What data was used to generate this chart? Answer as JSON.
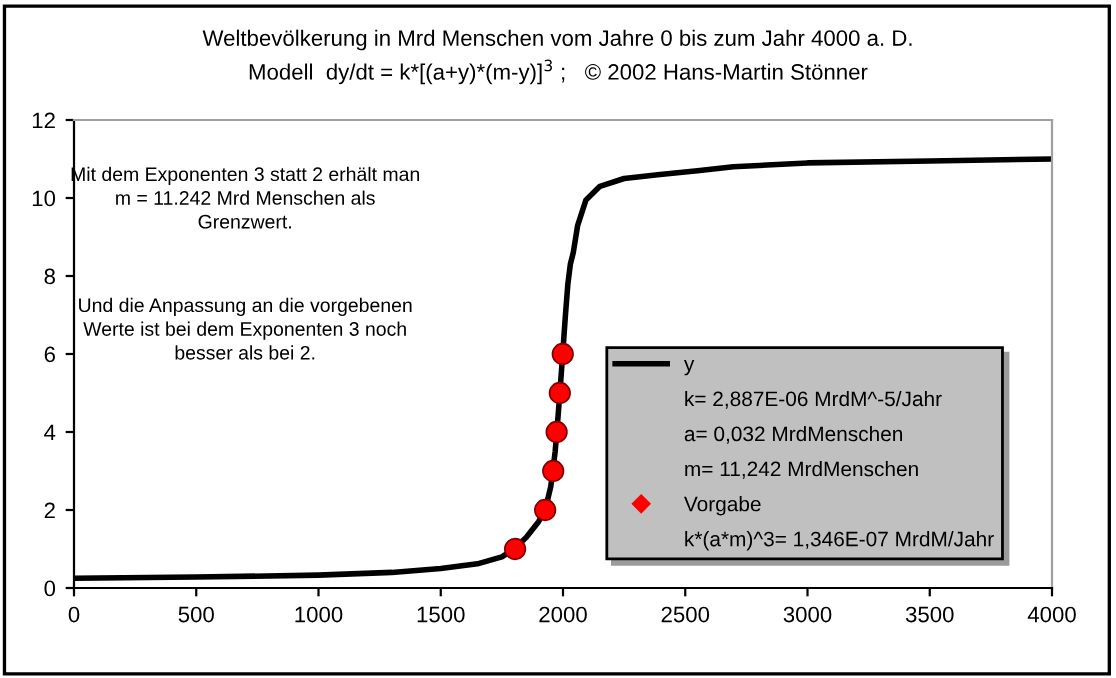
{
  "chart_data": {
    "type": "line",
    "title": "Weltbevölkerung in Mrd Menschen vom Jahre 0 bis zum Jahr 4000 a. D.",
    "subtitle": "Modell  dy/dt = k*[(a+y)*(m-y)]$^{3}$ ;   © 2002 Hans-Martin Stönner",
    "series": [
      {
        "name": "y",
        "color": "#000000",
        "marker": "none",
        "line_style": "solid",
        "x": [
          0,
          500,
          1000,
          1300,
          1500,
          1650,
          1750,
          1800,
          1850,
          1900,
          1927,
          1950,
          1968,
          1981,
          1993,
          2010,
          2020,
          2030,
          2042,
          2060,
          2094,
          2151,
          2250,
          2397,
          2550,
          2697,
          3000,
          3500,
          4000
        ],
        "values": [
          0.25,
          0.28,
          0.33,
          0.4,
          0.5,
          0.62,
          0.8,
          1.0,
          1.3,
          1.7,
          2.0,
          2.6,
          3.5,
          4.5,
          5.5,
          7.0,
          7.8,
          8.3,
          8.6,
          9.3,
          9.95,
          10.3,
          10.5,
          10.6,
          10.7,
          10.8,
          10.9,
          10.95,
          11.0
        ]
      },
      {
        "name": "Vorgabe",
        "type": "scatter",
        "color": "#ff0000",
        "marker": "circle",
        "x": [
          1804,
          1927,
          1960,
          1974,
          1987,
          1999
        ],
        "values": [
          1,
          2,
          3,
          4,
          5,
          6
        ]
      }
    ],
    "xlim": [
      0,
      4000
    ],
    "xticks": [
      0,
      500,
      1000,
      1500,
      2000,
      2500,
      3000,
      3500,
      4000
    ],
    "ylim": [
      0,
      12
    ],
    "yticks": [
      0,
      2,
      4,
      6,
      8,
      10,
      12
    ],
    "grid": false,
    "legend": "bottom right",
    "annotations": [
      "Mit dem Exponenten 3 statt 2 erhält man\nm = 11.242 Mrd Menschen als\nGrenzwert.",
      "Und die Anpassung an die vorgebenen\nWerte ist bei dem Exponenten 3 noch\nbesser als bei 2.",
      "k= 2,887E-06 MrdM^-5/Jahr",
      "a= 0,032 MrdMenschen",
      "m= 11,242 MrdMenschen",
      "k*(a*m)^3= 1,346E-07 MrdM/Jahr"
    ]
  }
}
